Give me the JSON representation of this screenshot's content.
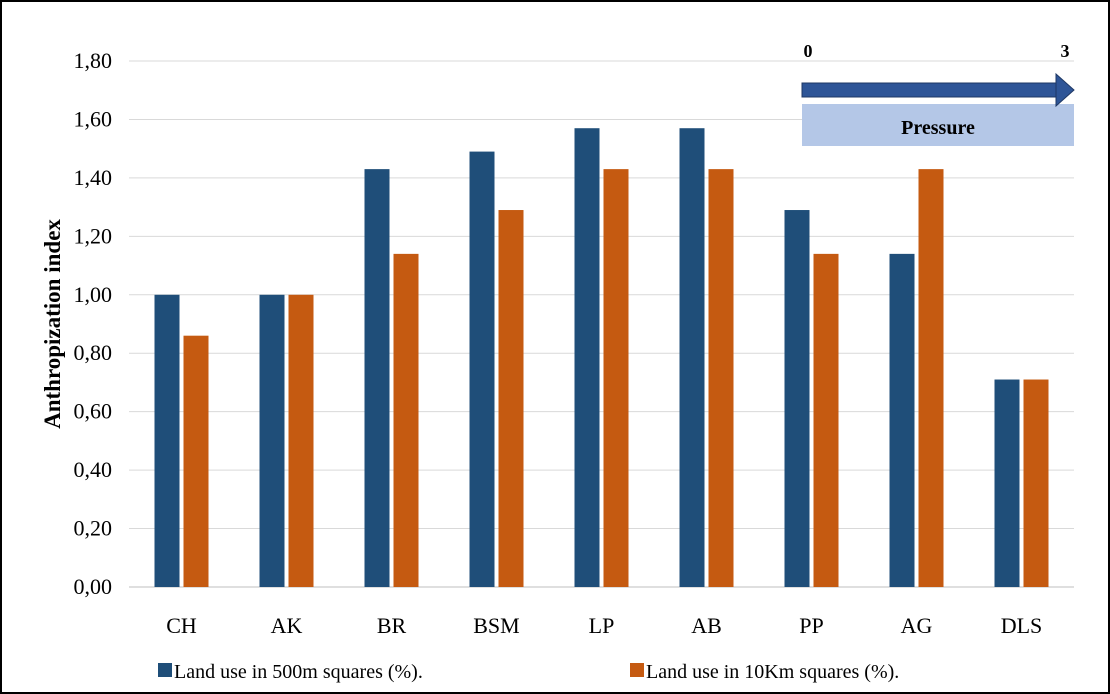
{
  "chart_data": {
    "type": "bar",
    "title": "",
    "xlabel": "",
    "ylabel": "Anthropization index",
    "ylim": [
      0,
      1.8
    ],
    "yticks": [
      "0,00",
      "0,20",
      "0,40",
      "0,60",
      "0,80",
      "1,00",
      "1,20",
      "1,40",
      "1,60",
      "1,80"
    ],
    "grid": "horizontal",
    "legend_position": "bottom",
    "categories": [
      "CH",
      "AK",
      "BR",
      "BSM",
      "LP",
      "AB",
      "PP",
      "AG",
      "DLS"
    ],
    "series": [
      {
        "name": "Land use in 500m squares (%).",
        "color": "#1f4e79",
        "values": [
          1.0,
          1.0,
          1.43,
          1.49,
          1.57,
          1.57,
          1.29,
          1.14,
          0.71
        ]
      },
      {
        "name": "Land use in 10Km squares (%).",
        "color": "#c55a11",
        "values": [
          0.86,
          1.0,
          1.14,
          1.29,
          1.43,
          1.43,
          1.14,
          1.43,
          0.71
        ]
      }
    ],
    "annotation": {
      "start_label": "0",
      "end_label": "3",
      "text": "Pressure",
      "arrow_color": "#2e5597",
      "box_color": "#b4c7e7"
    }
  }
}
